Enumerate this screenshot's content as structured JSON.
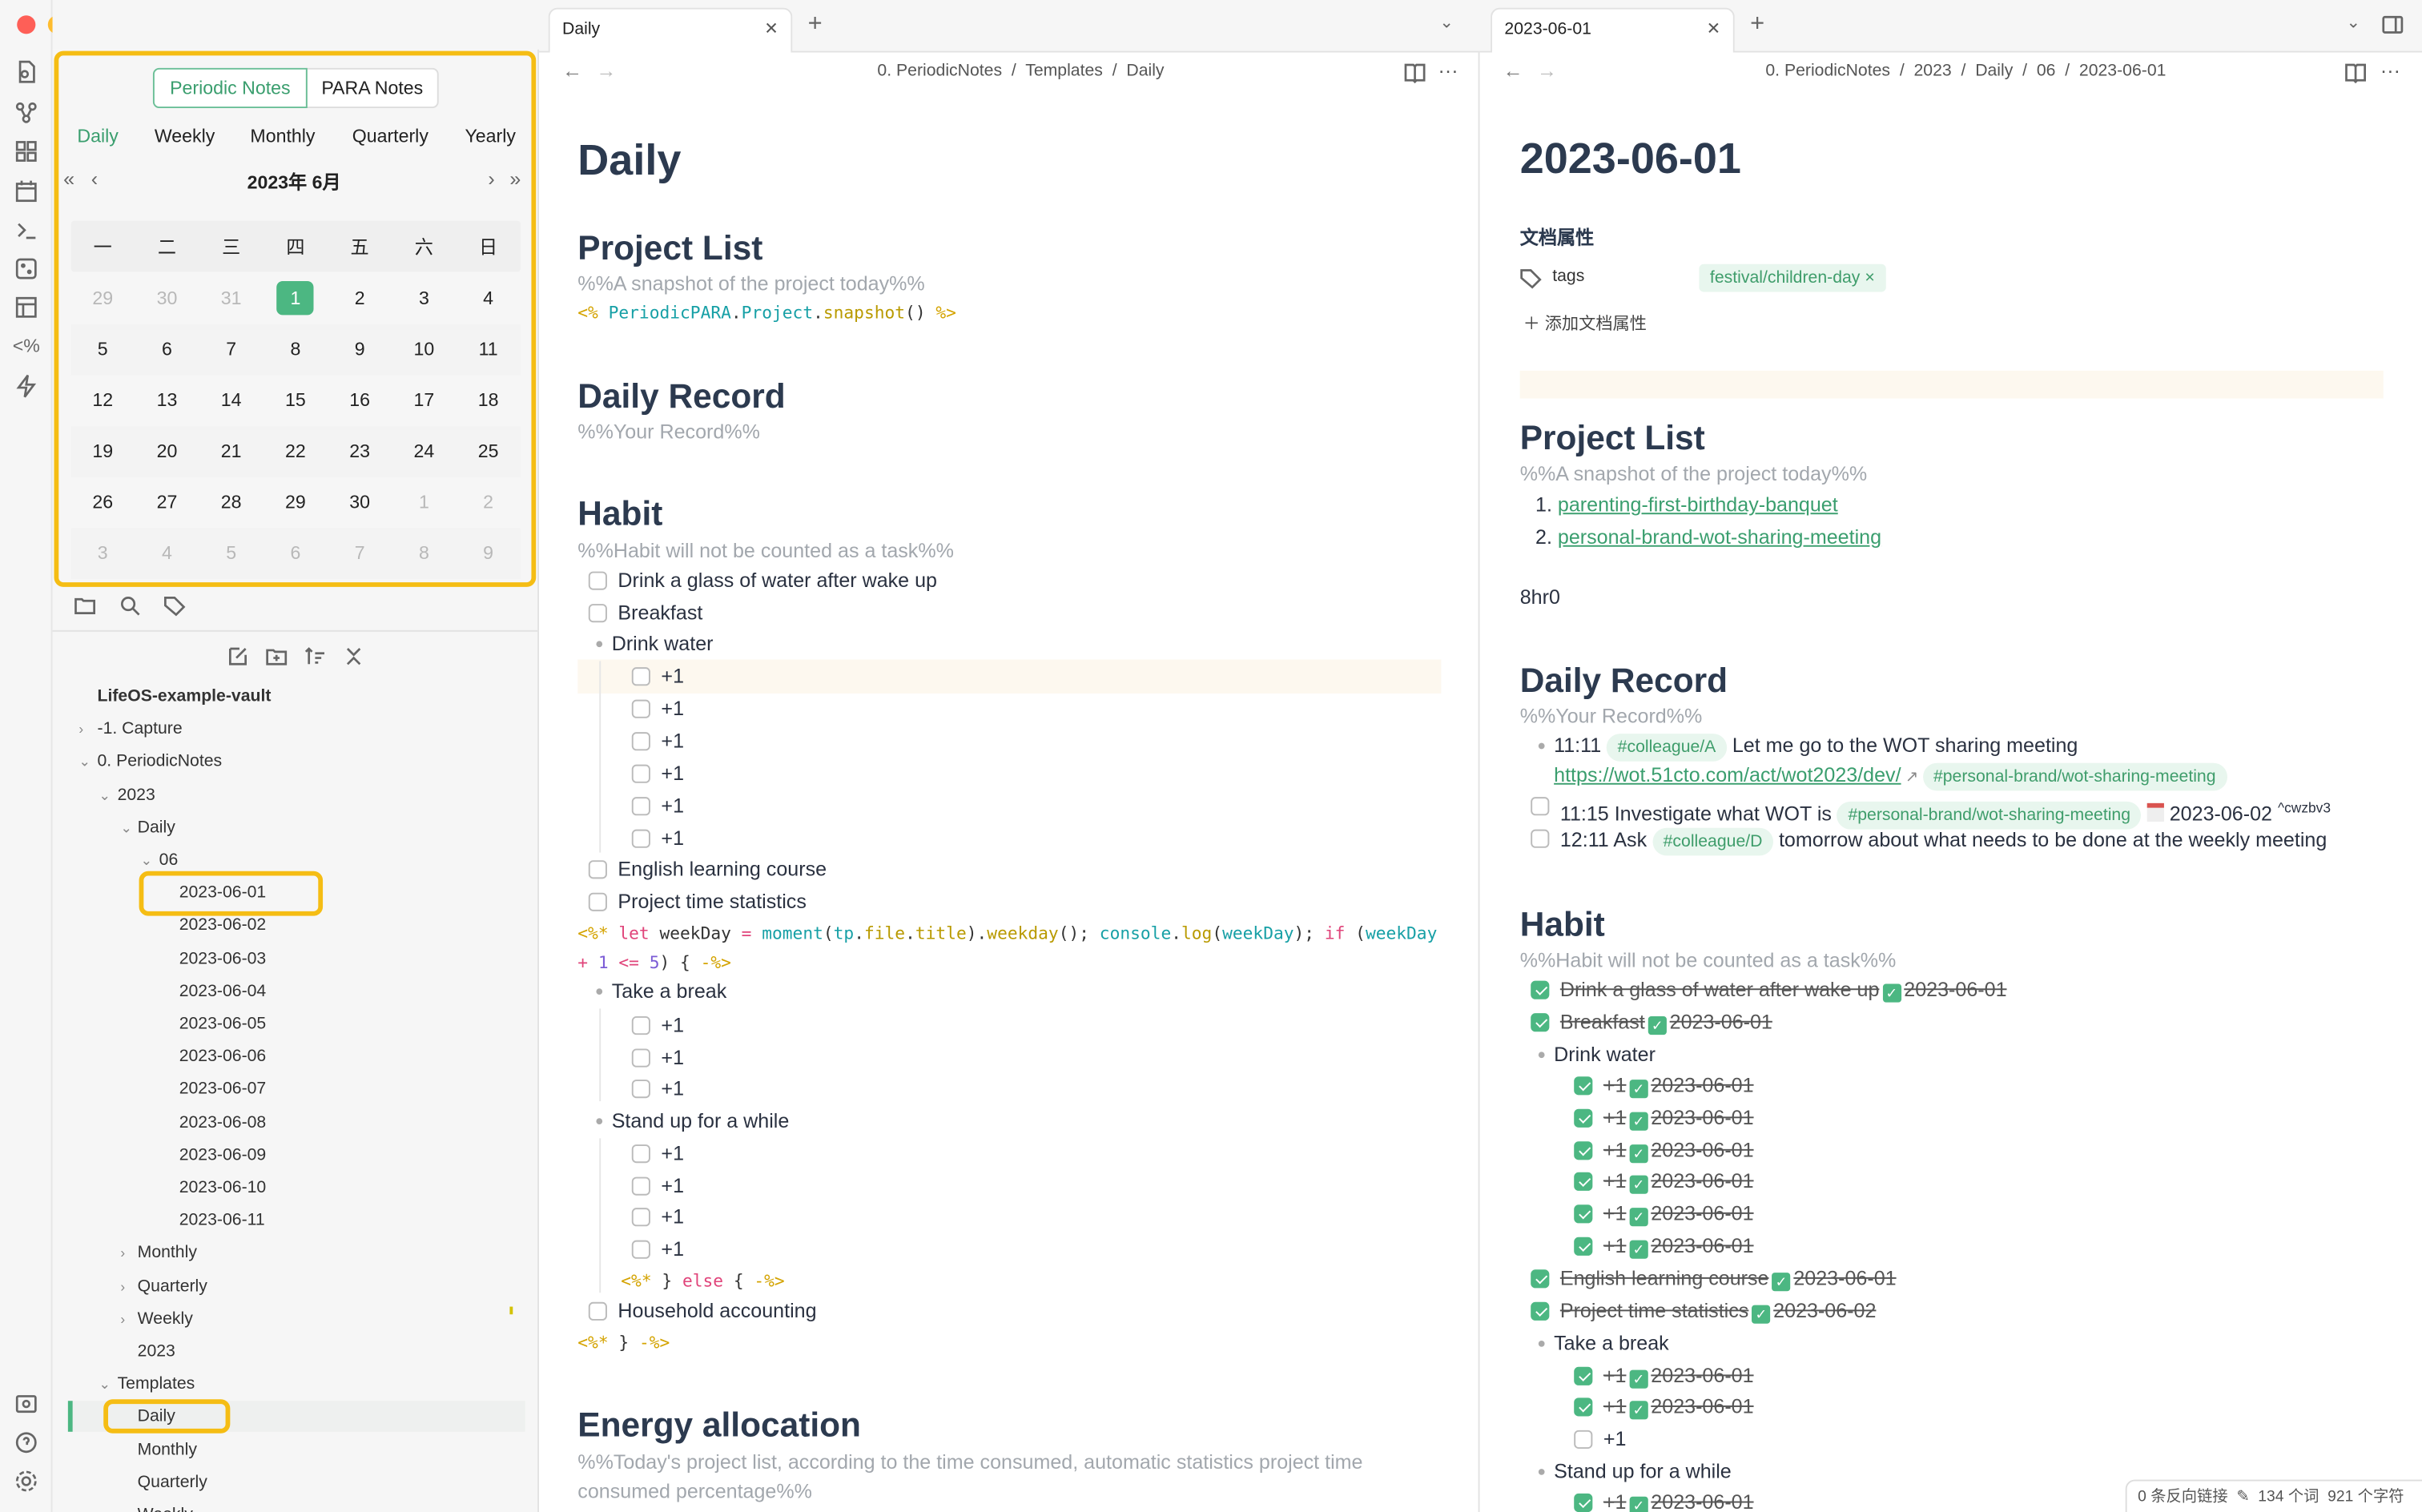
{
  "colors": {
    "accent": "#4cb782",
    "highlight": "#f5bd14",
    "heading": "#2c3a4f"
  },
  "titlebar": {
    "icons": [
      "bookmark-icon",
      "lightning-icon",
      "sidebar-toggle-icon"
    ]
  },
  "ribbon": {
    "icons": [
      "file-search-icon",
      "graph-icon",
      "blocks-icon",
      "calendar-icon",
      "terminal-icon",
      "dice-icon",
      "layout-icon",
      "templater-icon",
      "lightning-icon"
    ],
    "bottom_icons": [
      "vault-icon",
      "help-icon",
      "settings-icon"
    ]
  },
  "calendar": {
    "seg": [
      "Periodic Notes",
      "PARA Notes"
    ],
    "periods": [
      "Daily",
      "Weekly",
      "Monthly",
      "Quarterly",
      "Yearly"
    ],
    "month_label": "2023年  6月",
    "weekdays": [
      "一",
      "二",
      "三",
      "四",
      "五",
      "六",
      "日"
    ],
    "weeks": [
      [
        "29",
        "30",
        "31",
        "1",
        "2",
        "3",
        "4"
      ],
      [
        "5",
        "6",
        "7",
        "8",
        "9",
        "10",
        "11"
      ],
      [
        "12",
        "13",
        "14",
        "15",
        "16",
        "17",
        "18"
      ],
      [
        "19",
        "20",
        "21",
        "22",
        "23",
        "24",
        "25"
      ],
      [
        "26",
        "27",
        "28",
        "29",
        "30",
        "1",
        "2"
      ],
      [
        "3",
        "4",
        "5",
        "6",
        "7",
        "8",
        "9"
      ]
    ],
    "selected": "1"
  },
  "tree": {
    "items": [
      {
        "label": "LifeOS-example-vault",
        "level": 0,
        "chev": ""
      },
      {
        "label": "-1. Capture",
        "level": 1,
        "chev": "›"
      },
      {
        "label": "0. PeriodicNotes",
        "level": 1,
        "chev": "⌄"
      },
      {
        "label": "2023",
        "level": 2,
        "chev": "⌄"
      },
      {
        "label": "Daily",
        "level": 3,
        "chev": "⌄"
      },
      {
        "label": "06",
        "level": 4,
        "chev": "⌄"
      },
      {
        "label": "2023-06-01",
        "level": 5,
        "chev": ""
      },
      {
        "label": "2023-06-02",
        "level": 5,
        "chev": ""
      },
      {
        "label": "2023-06-03",
        "level": 5,
        "chev": ""
      },
      {
        "label": "2023-06-04",
        "level": 5,
        "chev": ""
      },
      {
        "label": "2023-06-05",
        "level": 5,
        "chev": ""
      },
      {
        "label": "2023-06-06",
        "level": 5,
        "chev": ""
      },
      {
        "label": "2023-06-07",
        "level": 5,
        "chev": ""
      },
      {
        "label": "2023-06-08",
        "level": 5,
        "chev": ""
      },
      {
        "label": "2023-06-09",
        "level": 5,
        "chev": ""
      },
      {
        "label": "2023-06-10",
        "level": 5,
        "chev": ""
      },
      {
        "label": "2023-06-11",
        "level": 5,
        "chev": ""
      },
      {
        "label": "Monthly",
        "level": 3,
        "chev": "›"
      },
      {
        "label": "Quarterly",
        "level": 3,
        "chev": "›"
      },
      {
        "label": "Weekly",
        "level": 3,
        "chev": "›"
      },
      {
        "label": "2023",
        "level": 3,
        "chev": ""
      },
      {
        "label": "Templates",
        "level": 2,
        "chev": "⌄"
      },
      {
        "label": "Daily",
        "level": 3,
        "chev": ""
      },
      {
        "label": "Monthly",
        "level": 3,
        "chev": ""
      },
      {
        "label": "Quarterly",
        "level": 3,
        "chev": ""
      },
      {
        "label": "Weekly",
        "level": 3,
        "chev": ""
      }
    ]
  },
  "middle": {
    "tab": "Daily",
    "breadcrumb": [
      "0. PeriodicNotes",
      "Templates",
      "Daily"
    ],
    "title": "Daily",
    "project_list": {
      "heading": "Project List",
      "comment": "%%A snapshot of the project today%%",
      "code": [
        "<%",
        "PeriodicPARA",
        ".",
        "Project",
        ".",
        "snapshot",
        "()",
        "%>"
      ]
    },
    "daily_record": {
      "heading": "Daily Record",
      "comment": "%%Your Record%%"
    },
    "habit": {
      "heading": "Habit",
      "comment": "%%Habit will not be counted as a task%%",
      "t1": "Drink a glass of water after wake up",
      "t2": "Breakfast",
      "drink": "Drink water",
      "plus": "+1",
      "t3": "English learning course",
      "t4": "Project time statistics",
      "code1": [
        "<%*",
        " let",
        " weekDay",
        " =",
        " moment",
        "(",
        "tp",
        ".",
        "file",
        ".",
        "title",
        ").",
        "weekday",
        "(); ",
        "console",
        ".",
        "log",
        "(",
        "weekDay",
        "); ",
        "if",
        " (",
        "weekDay"
      ],
      "code2": [
        "+",
        " 1",
        " <=",
        " 5",
        ") { ",
        "-%>"
      ],
      "break": "Take a break",
      "stand": "Stand up for a while",
      "code3": [
        "<%*",
        " } ",
        "else",
        " { ",
        "-%>"
      ],
      "t5": "Household accounting",
      "code4": [
        "<%*",
        " } ",
        "-%>"
      ]
    },
    "energy": {
      "heading": "Energy allocation",
      "comment1": "%%Today's project list, according to the time consumed, automatic statistics project time",
      "comment2": "consumed percentage%%"
    }
  },
  "right": {
    "tab": "2023-06-01",
    "breadcrumb": [
      "0. PeriodicNotes",
      "2023",
      "Daily",
      "06",
      "2023-06-01"
    ],
    "title": "2023-06-01",
    "props": {
      "heading": "文档属性",
      "key": "tags",
      "value": "festival/children-day",
      "remove": "×",
      "add": "添加文档属性"
    },
    "project_list": {
      "heading": "Project List",
      "comment": "%%A snapshot of the project today%%",
      "items": [
        "parenting-first-birthday-banquet",
        "personal-brand-wot-sharing-meeting"
      ]
    },
    "time": "8hr0",
    "daily_record": {
      "heading": "Daily Record",
      "comment": "%%Your Record%%",
      "r1_time": "11:11",
      "r1_tag": "#colleague/A",
      "r1_text": "Let me go to the WOT sharing meeting",
      "r1_link": "https://wot.51cto.com/act/wot2023/dev/",
      "r1_tag2": "#personal-brand/wot-sharing-meeting",
      "r2_text": "11:15 Investigate what WOT is",
      "r2_tag": "#personal-brand/wot-sharing-meeting",
      "r2_date": "2023-06-02",
      "r2_block": "^cwzbv3",
      "r3_text": "12:11 Ask",
      "r3_tag": "#colleague/D",
      "r3_rest": "tomorrow about what needs to be done at the weekly meeting"
    },
    "habit": {
      "heading": "Habit",
      "comment": "%%Habit will not be counted as a task%%",
      "t1": "Drink a glass of water after wake up",
      "t2": "Breakfast",
      "drink": "Drink water",
      "plus": "+1",
      "t3": "English learning course",
      "t4": "Project time statistics",
      "break": "Take a break",
      "stand": "Stand up for a while",
      "done": "2023-06-01",
      "done2": "2023-06-02"
    }
  },
  "status": {
    "backlinks": "0 条反向链接",
    "words": "134 个词",
    "chars": "921 个字符"
  }
}
